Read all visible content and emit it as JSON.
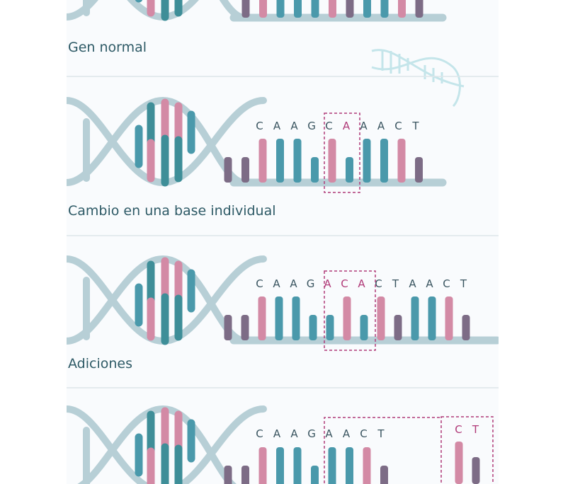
{
  "colors": {
    "pink": "#d38aa5",
    "teal": "#4a99ab",
    "dark_teal": "#3e8e98",
    "purple": "#7d6c86",
    "backbone": "#b7cfd6",
    "divider": "#dde6ea",
    "highlight": "#b03a78",
    "caption": "#2e5a66"
  },
  "panels": [
    {
      "caption": "Gen normal",
      "letters": [],
      "bars": [
        "purple",
        "pink",
        "teal",
        "teal",
        "teal",
        "pink",
        "purple",
        "teal",
        "teal",
        "pink",
        "purple"
      ]
    },
    {
      "caption": "Cambio en una base individual",
      "letters": [
        {
          "t": "C",
          "hl": false
        },
        {
          "t": "A",
          "hl": false
        },
        {
          "t": "A",
          "hl": false
        },
        {
          "t": "G",
          "hl": false
        },
        {
          "t": "C",
          "hl": false
        },
        {
          "t": "A",
          "hl": true
        },
        {
          "t": "A",
          "hl": false
        },
        {
          "t": "A",
          "hl": false
        },
        {
          "t": "C",
          "hl": false
        },
        {
          "t": "T",
          "hl": false
        }
      ],
      "bars": [
        "purple",
        "purple",
        "pink",
        "teal",
        "teal",
        "teal",
        "pink",
        "teal",
        "teal",
        "teal",
        "pink",
        "purple"
      ]
    },
    {
      "caption": "Adiciones",
      "letters": [
        {
          "t": "C",
          "hl": false
        },
        {
          "t": "A",
          "hl": false
        },
        {
          "t": "A",
          "hl": false
        },
        {
          "t": "G",
          "hl": false
        },
        {
          "t": "A",
          "hl": true
        },
        {
          "t": "C",
          "hl": true
        },
        {
          "t": "A",
          "hl": true
        },
        {
          "t": "C",
          "hl": false
        },
        {
          "t": "T",
          "hl": false
        },
        {
          "t": "A",
          "hl": false
        },
        {
          "t": "A",
          "hl": false
        },
        {
          "t": "C",
          "hl": false
        },
        {
          "t": "T",
          "hl": false
        }
      ],
      "bars": [
        "purple",
        "purple",
        "pink",
        "teal",
        "teal",
        "teal",
        "teal",
        "pink",
        "teal",
        "pink",
        "purple",
        "teal",
        "teal",
        "pink",
        "purple"
      ]
    },
    {
      "caption": "",
      "letters": [
        {
          "t": "C",
          "hl": false
        },
        {
          "t": "A",
          "hl": false
        },
        {
          "t": "A",
          "hl": false
        },
        {
          "t": "G",
          "hl": false
        },
        {
          "t": "A",
          "hl": false
        },
        {
          "t": "A",
          "hl": false
        },
        {
          "t": "C",
          "hl": false
        },
        {
          "t": "T",
          "hl": false
        }
      ],
      "extra_letters": [
        {
          "t": "C",
          "hl": true
        },
        {
          "t": "T",
          "hl": true
        }
      ],
      "bars": [
        "purple",
        "purple",
        "pink",
        "teal",
        "teal",
        "teal",
        "teal",
        "teal",
        "pink",
        "purple"
      ],
      "extra_bars": [
        "pink",
        "purple"
      ]
    }
  ]
}
